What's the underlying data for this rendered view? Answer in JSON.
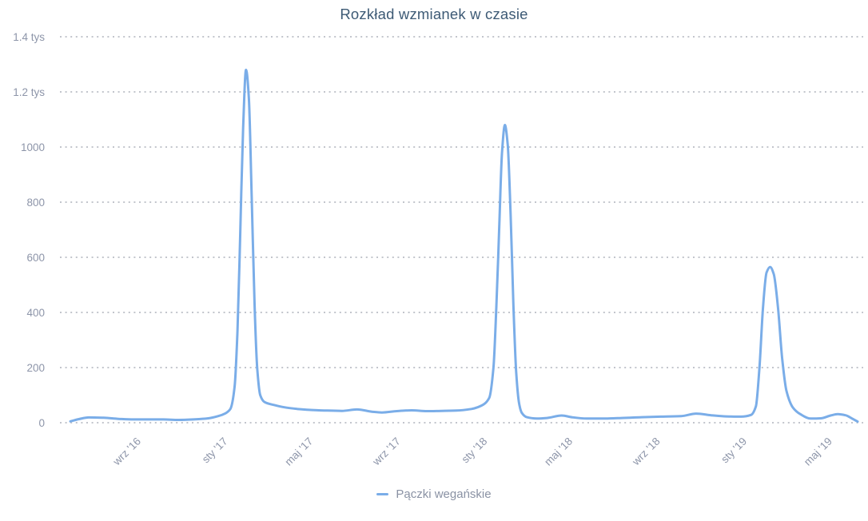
{
  "chart_data": {
    "type": "line",
    "title": "Rozkład wzmianek w czasie",
    "xlabel": "",
    "ylabel": "",
    "ylim": [
      0,
      1400
    ],
    "grid": "horizontal-dotted",
    "legend_position": "bottom",
    "y_ticks": [
      {
        "value": 1400,
        "label": "1.4 tys"
      },
      {
        "value": 1200,
        "label": "1.2 tys"
      },
      {
        "value": 1000,
        "label": "1000"
      },
      {
        "value": 800,
        "label": "800"
      },
      {
        "value": 600,
        "label": "600"
      },
      {
        "value": 400,
        "label": "400"
      },
      {
        "value": 200,
        "label": "200"
      },
      {
        "value": 0,
        "label": "0"
      }
    ],
    "x_ticks": [
      {
        "date": "2016-09-01",
        "label": "wrz '16"
      },
      {
        "date": "2017-01-01",
        "label": "sty '17"
      },
      {
        "date": "2017-05-01",
        "label": "maj '17"
      },
      {
        "date": "2017-09-01",
        "label": "wrz '17"
      },
      {
        "date": "2018-01-01",
        "label": "sty '18"
      },
      {
        "date": "2018-05-01",
        "label": "maj '18"
      },
      {
        "date": "2018-09-01",
        "label": "wrz '18"
      },
      {
        "date": "2019-01-01",
        "label": "sty '19"
      },
      {
        "date": "2019-05-01",
        "label": "maj '19"
      }
    ],
    "series": [
      {
        "name": "Pączki wegańskie",
        "color": "#7aade8",
        "points": [
          [
            "2016-05-24",
            5
          ],
          [
            "2016-06-05",
            13
          ],
          [
            "2016-06-19",
            19
          ],
          [
            "2016-07-10",
            18
          ],
          [
            "2016-07-31",
            14
          ],
          [
            "2016-08-21",
            12
          ],
          [
            "2016-09-11",
            12
          ],
          [
            "2016-10-02",
            12
          ],
          [
            "2016-10-23",
            10
          ],
          [
            "2016-11-13",
            12
          ],
          [
            "2016-12-04",
            16
          ],
          [
            "2016-12-18",
            24
          ],
          [
            "2016-12-28",
            34
          ],
          [
            "2017-01-04",
            50
          ],
          [
            "2017-01-10",
            130
          ],
          [
            "2017-01-14",
            330
          ],
          [
            "2017-01-18",
            700
          ],
          [
            "2017-01-22",
            1070
          ],
          [
            "2017-01-26",
            1280
          ],
          [
            "2017-01-30",
            1180
          ],
          [
            "2017-02-03",
            820
          ],
          [
            "2017-02-07",
            430
          ],
          [
            "2017-02-11",
            190
          ],
          [
            "2017-02-15",
            100
          ],
          [
            "2017-02-21",
            75
          ],
          [
            "2017-03-07",
            64
          ],
          [
            "2017-03-21",
            56
          ],
          [
            "2017-04-08",
            50
          ],
          [
            "2017-04-29",
            46
          ],
          [
            "2017-05-20",
            44
          ],
          [
            "2017-06-10",
            43
          ],
          [
            "2017-07-01",
            48
          ],
          [
            "2017-07-22",
            40
          ],
          [
            "2017-08-05",
            37
          ],
          [
            "2017-08-26",
            42
          ],
          [
            "2017-09-16",
            45
          ],
          [
            "2017-10-07",
            42
          ],
          [
            "2017-10-28",
            43
          ],
          [
            "2017-11-18",
            44
          ],
          [
            "2017-12-09",
            50
          ],
          [
            "2017-12-23",
            62
          ],
          [
            "2018-01-03",
            90
          ],
          [
            "2018-01-09",
            200
          ],
          [
            "2018-01-13",
            420
          ],
          [
            "2018-01-17",
            700
          ],
          [
            "2018-01-21",
            980
          ],
          [
            "2018-01-25",
            1080
          ],
          [
            "2018-01-29",
            1010
          ],
          [
            "2018-02-02",
            760
          ],
          [
            "2018-02-06",
            430
          ],
          [
            "2018-02-10",
            180
          ],
          [
            "2018-02-14",
            70
          ],
          [
            "2018-02-18",
            35
          ],
          [
            "2018-02-25",
            20
          ],
          [
            "2018-03-11",
            15
          ],
          [
            "2018-03-25",
            17
          ],
          [
            "2018-04-15",
            26
          ],
          [
            "2018-04-29",
            20
          ],
          [
            "2018-05-20",
            15
          ],
          [
            "2018-06-10",
            15
          ],
          [
            "2018-07-08",
            17
          ],
          [
            "2018-08-05",
            20
          ],
          [
            "2018-09-02",
            22
          ],
          [
            "2018-09-30",
            24
          ],
          [
            "2018-10-21",
            33
          ],
          [
            "2018-11-11",
            27
          ],
          [
            "2018-12-02",
            23
          ],
          [
            "2018-12-23",
            22
          ],
          [
            "2019-01-06",
            28
          ],
          [
            "2019-01-13",
            60
          ],
          [
            "2019-01-18",
            200
          ],
          [
            "2019-01-23",
            420
          ],
          [
            "2019-01-28",
            545
          ],
          [
            "2019-02-02",
            565
          ],
          [
            "2019-02-07",
            540
          ],
          [
            "2019-02-13",
            420
          ],
          [
            "2019-02-19",
            230
          ],
          [
            "2019-02-25",
            115
          ],
          [
            "2019-03-06",
            55
          ],
          [
            "2019-03-17",
            30
          ],
          [
            "2019-03-31",
            15
          ],
          [
            "2019-04-14",
            16
          ],
          [
            "2019-04-28",
            26
          ],
          [
            "2019-05-08",
            31
          ],
          [
            "2019-05-19",
            27
          ],
          [
            "2019-05-29",
            14
          ],
          [
            "2019-06-05",
            4
          ]
        ]
      }
    ]
  },
  "colors": {
    "background": "#ffffff",
    "title": "#3d5a75",
    "axis_label": "#8d95a9",
    "legend_label": "#8a92a4",
    "gridline": "#c2c5cc",
    "series_line": "#7aade8"
  }
}
